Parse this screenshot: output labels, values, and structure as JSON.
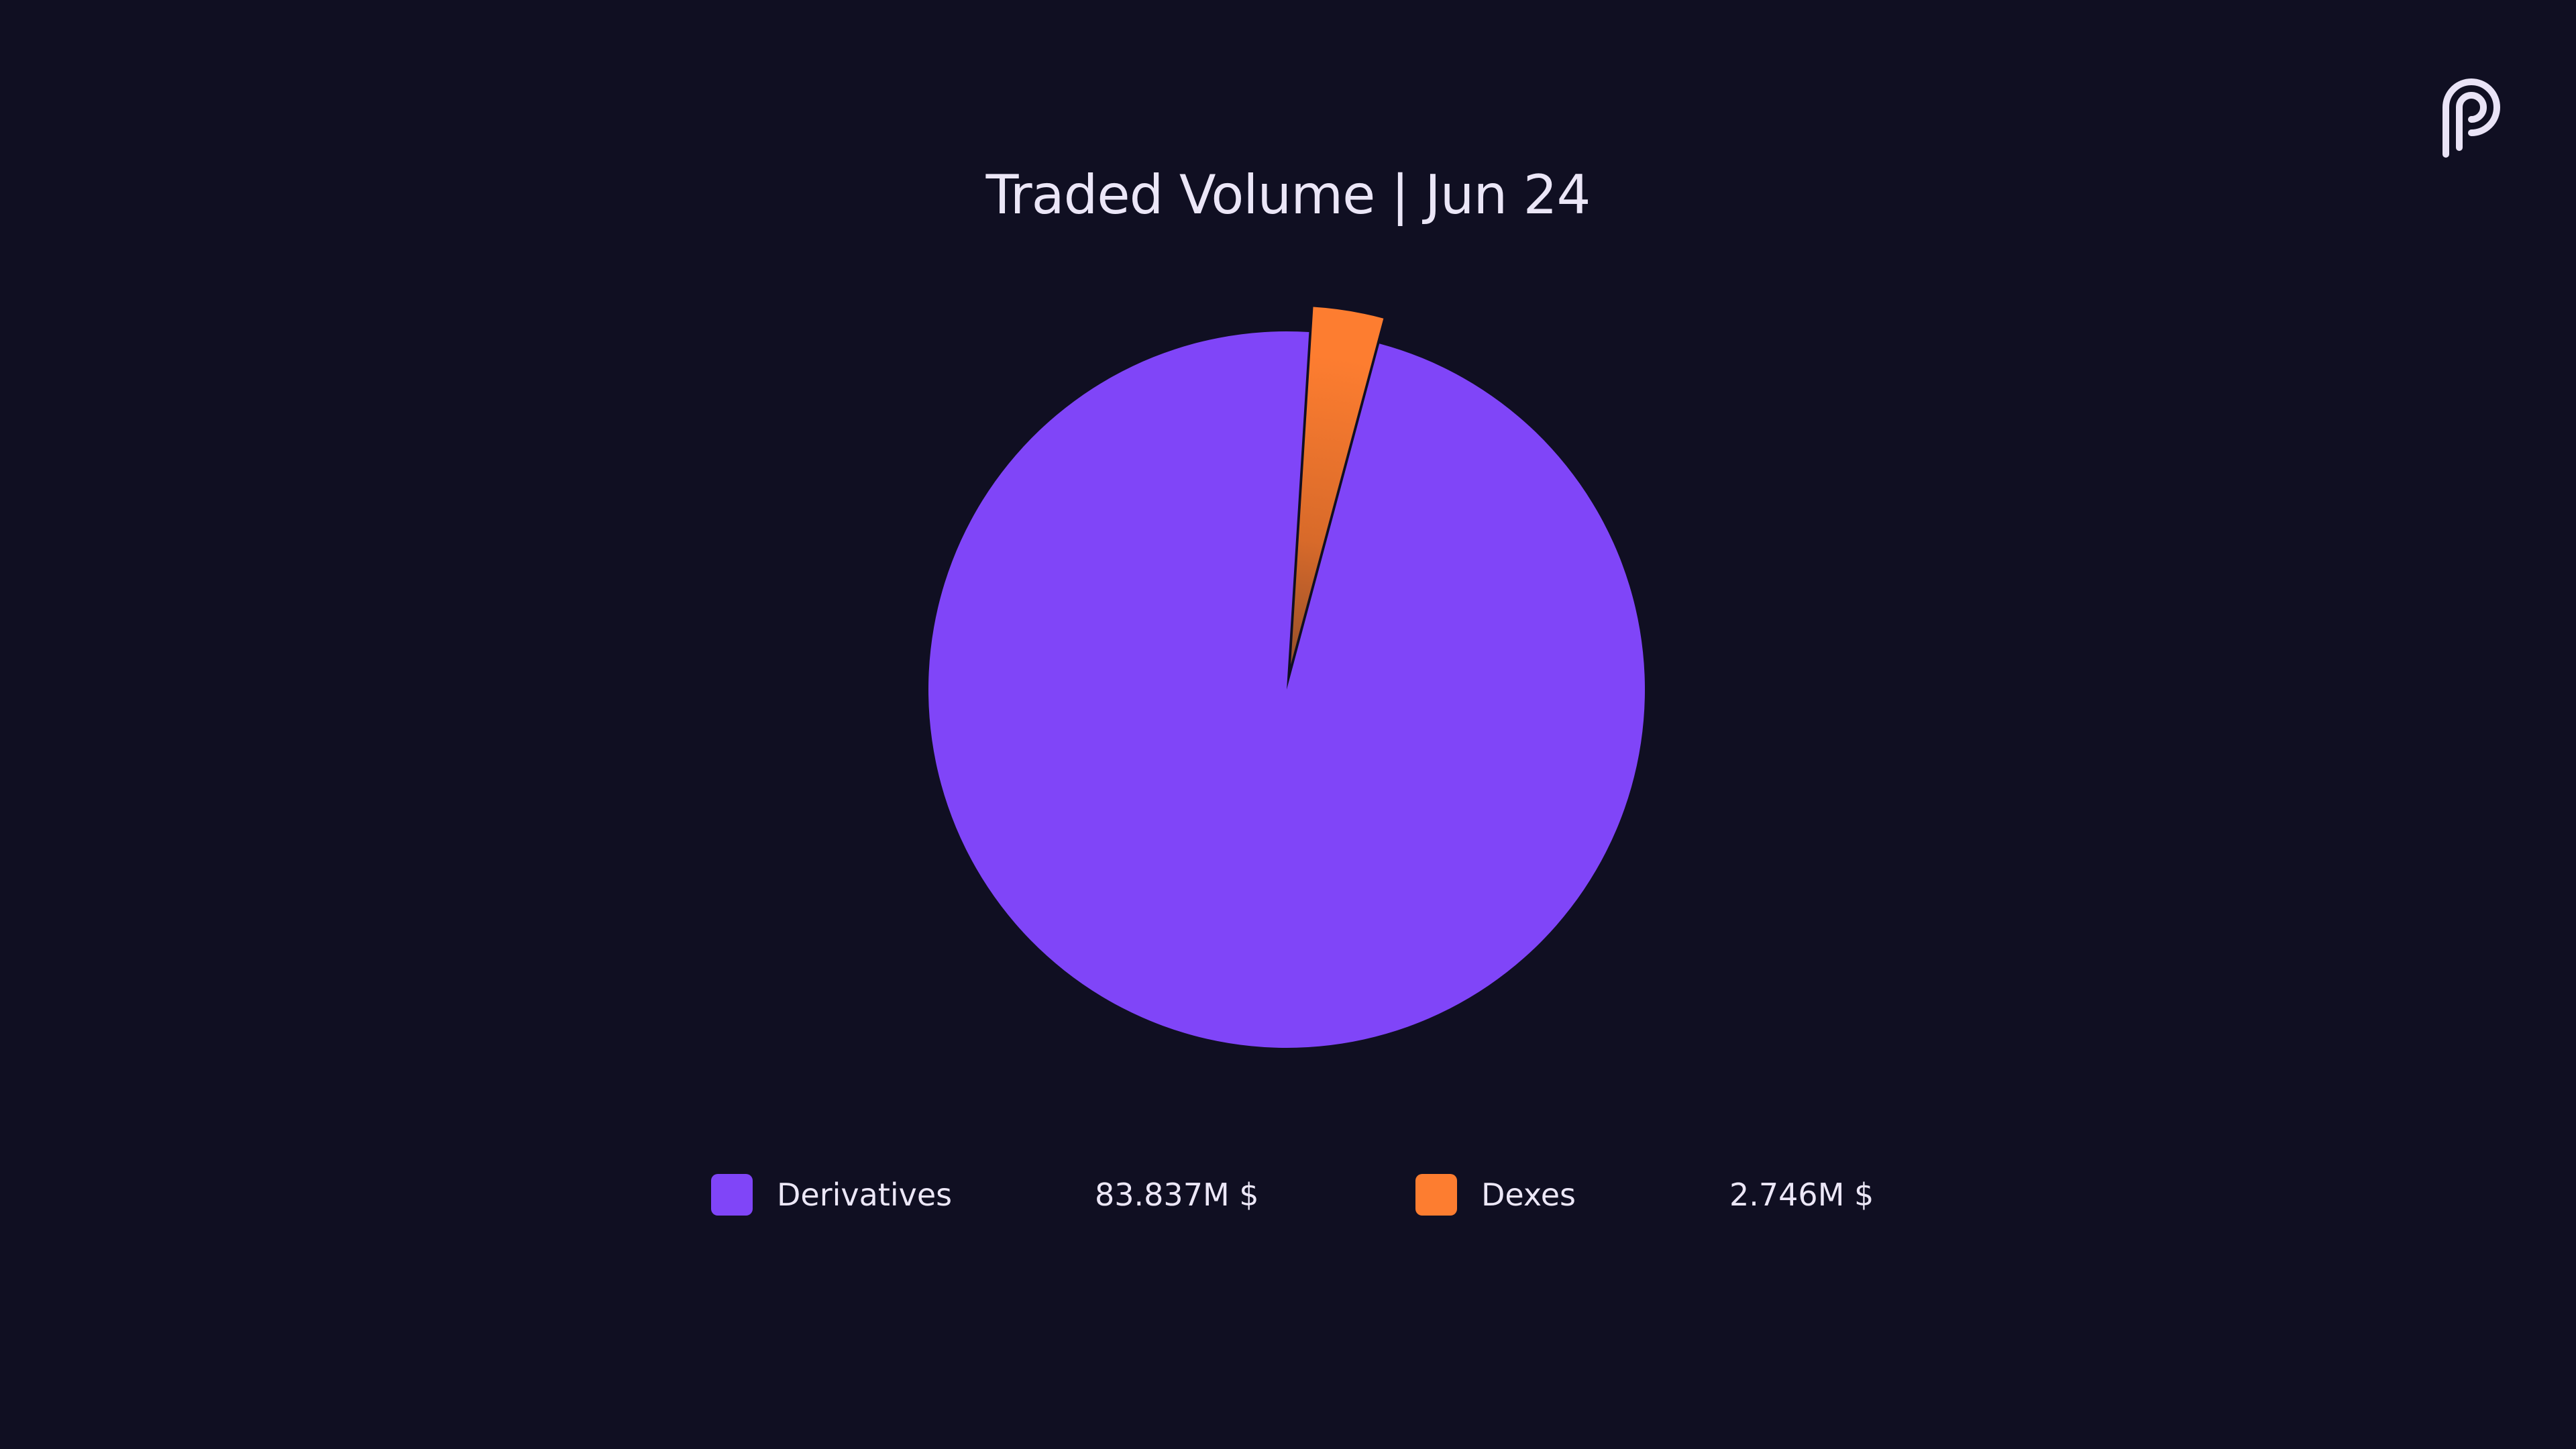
{
  "title": "Traded Volume | Jun 24",
  "logo": {
    "icon": "pyth-logo-icon"
  },
  "colors": {
    "background": "#100f22",
    "derivatives": "#8045f8",
    "dexes": "#fd7d30",
    "text": "#ece7f7"
  },
  "chart_data": {
    "type": "pie",
    "title": "Traded Volume | Jun 24",
    "start_angle_deg": 15,
    "exploded_slice": "Dexes",
    "slices": [
      {
        "name": "Derivatives",
        "value": 83.837,
        "value_label": "83.837M $",
        "color": "#8045f8"
      },
      {
        "name": "Dexes",
        "value": 2.746,
        "value_label": "2.746M $",
        "color": "#fd7d30"
      }
    ],
    "legend_position": "bottom"
  }
}
